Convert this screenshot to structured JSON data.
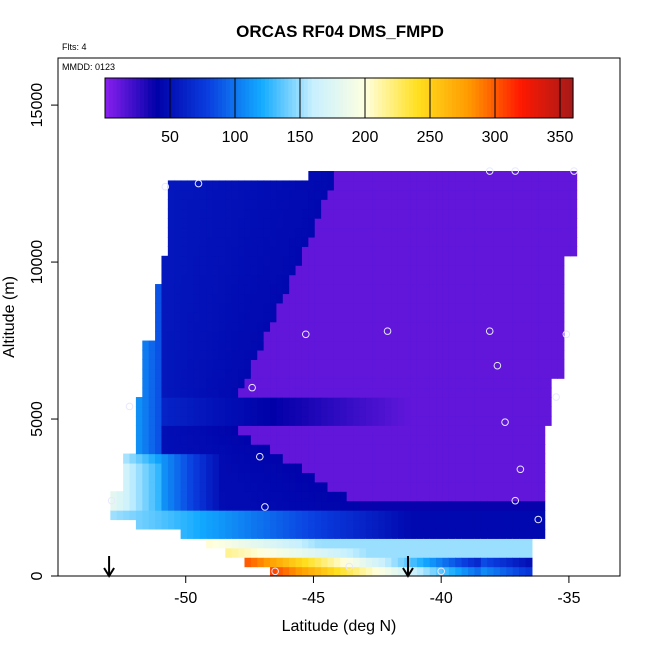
{
  "chart_data": {
    "type": "heatmap",
    "title": "ORCAS RF04 DMS_FMPD",
    "flights_label": "Flts: 4",
    "date_label": "MMDD: 0123",
    "xlabel": "Latitude (deg N)",
    "ylabel": "Altitude (m)",
    "xlim": [
      -55,
      -33
    ],
    "ylim": [
      0,
      16500
    ],
    "xticks": [
      -50,
      -45,
      -40,
      -35
    ],
    "xtick_labels": [
      "-50",
      "-45",
      "-40",
      "-35"
    ],
    "yticks": [
      0,
      5000,
      10000,
      15000
    ],
    "ytick_labels": [
      "0",
      "5000",
      "10000",
      "15000"
    ],
    "colorbar": {
      "range": [
        0,
        360
      ],
      "ticks": [
        50,
        100,
        150,
        200,
        250,
        300,
        350
      ],
      "tick_labels": [
        "50",
        "100",
        "150",
        "200",
        "250",
        "300",
        "350"
      ],
      "colors": [
        "#8a20f0",
        "#0000a8",
        "#0a3fe0",
        "#12aaff",
        "#c8f0ff",
        "#ffffe0",
        "#ffe020",
        "#ff9a00",
        "#ff1800",
        "#a51a1a"
      ]
    },
    "observations": [
      {
        "lat": -50.8,
        "alt": 12400
      },
      {
        "lat": -49.5,
        "alt": 12500
      },
      {
        "lat": -38.1,
        "alt": 12900
      },
      {
        "lat": -37.1,
        "alt": 12900
      },
      {
        "lat": -34.8,
        "alt": 12900
      },
      {
        "lat": -45.3,
        "alt": 7700
      },
      {
        "lat": -42.1,
        "alt": 7800
      },
      {
        "lat": -38.1,
        "alt": 7800
      },
      {
        "lat": -35.1,
        "alt": 7700
      },
      {
        "lat": -37.8,
        "alt": 6700
      },
      {
        "lat": -47.4,
        "alt": 6000
      },
      {
        "lat": -35.5,
        "alt": 5700
      },
      {
        "lat": -52.2,
        "alt": 5400
      },
      {
        "lat": -37.5,
        "alt": 4900
      },
      {
        "lat": -47.1,
        "alt": 3800
      },
      {
        "lat": -36.9,
        "alt": 3400
      },
      {
        "lat": -52.9,
        "alt": 2400
      },
      {
        "lat": -46.9,
        "alt": 2200
      },
      {
        "lat": -37.1,
        "alt": 2400
      },
      {
        "lat": -36.2,
        "alt": 1800
      },
      {
        "lat": -43.6,
        "alt": 300
      },
      {
        "lat": -46.5,
        "alt": 150
      },
      {
        "lat": -40.0,
        "alt": 150
      }
    ],
    "arrow_markers_lat": [
      -53.0,
      -41.3
    ]
  }
}
